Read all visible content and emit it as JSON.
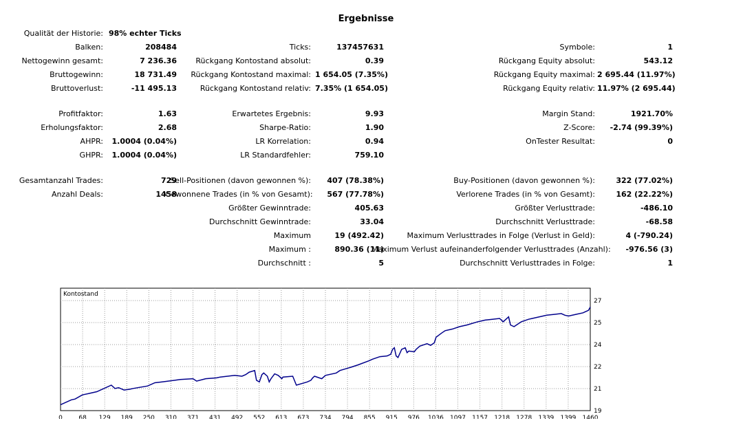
{
  "title": "Ergebnisse",
  "history": {
    "label": "Qualität der Historie:",
    "value": "98% echter Ticks"
  },
  "rows": [
    {
      "l1": "Balken:",
      "v1": "208484",
      "l2": "Ticks:",
      "v2": "137457631",
      "l3": "Symbole:",
      "v3": "1"
    },
    {
      "l1": "Nettogewinn gesamt:",
      "v1": "7 236.36",
      "l2": "Rückgang Kontostand absolut:",
      "v2": "0.39",
      "l3": "Rückgang Equity absolut:",
      "v3": "543.12"
    },
    {
      "l1": "Bruttogewinn:",
      "v1": "18 731.49",
      "l2": "Rückgang Kontostand maximal:",
      "v2": "1 654.05 (7.35%)",
      "l3": "Rückgang Equity maximal:",
      "v3": "2 695.44 (11.97%)"
    },
    {
      "l1": "Bruttoverlust:",
      "v1": "-11 495.13",
      "l2": "Rückgang Kontostand relativ:",
      "v2": "7.35% (1 654.05)",
      "l3": "Rückgang Equity relativ:",
      "v3": "11.97% (2 695.44)"
    },
    {
      "l1": "Profitfaktor:",
      "v1": "1.63",
      "l2": "Erwartetes Ergebnis:",
      "v2": "9.93",
      "l3": "Margin Stand:",
      "v3": "1921.70%"
    },
    {
      "l1": "Erholungsfaktor:",
      "v1": "2.68",
      "l2": "Sharpe-Ratio:",
      "v2": "1.90",
      "l3": "Z-Score:",
      "v3": "-2.74 (99.39%)"
    },
    {
      "l1": "AHPR:",
      "v1": "1.0004 (0.04%)",
      "l2": "LR Korrelation:",
      "v2": "0.94",
      "l3": "OnTester Resultat:",
      "v3": "0"
    },
    {
      "l1": "GHPR:",
      "v1": "1.0004 (0.04%)",
      "l2": "LR Standardfehler:",
      "v2": "759.10",
      "l3": "",
      "v3": ""
    },
    {
      "l1": "Gesamtanzahl Trades:",
      "v1": "729",
      "l2": "Sell-Positionen (davon gewonnen %):",
      "v2": "407 (78.38%)",
      "l3": "Buy-Positionen (davon gewonnen %):",
      "v3": "322 (77.02%)"
    },
    {
      "l1": "Anzahl Deals:",
      "v1": "1458",
      "l2": "Gewonnene Trades (in % von Gesamt):",
      "v2": "567 (77.78%)",
      "l3": "Verlorene Trades (in % von Gesamt):",
      "v3": "162 (22.22%)"
    },
    {
      "l1": "",
      "v1": "",
      "l2": "Größter Gewinntrade:",
      "v2": "405.63",
      "l3": "Größter Verlusttrade:",
      "v3": "-486.10"
    },
    {
      "l1": "",
      "v1": "",
      "l2": "Durchschnitt Gewinntrade:",
      "v2": "33.04",
      "l3": "Durchschnitt Verlusttrade:",
      "v3": "-68.58"
    },
    {
      "l1": "",
      "v1": "",
      "l2": "Maximum",
      "v2": "19 (492.42)",
      "l3": "Maximum Verlusttrades in Folge (Verlust in Geld):",
      "v3": "4 (-790.24)"
    },
    {
      "l1": "",
      "v1": "",
      "l2": "Maximum :",
      "v2": "890.36 (11)",
      "l3": "Maximum Verlust aufeinanderfolgender Verlusttrades (Anzahl):",
      "v3": "-976.56 (3)"
    },
    {
      "l1": "",
      "v1": "",
      "l2": "Durchschnitt :",
      "v2": "5",
      "l3": "Durchschnitt Verlusttrades in Folge:",
      "v3": "1"
    }
  ],
  "chart_data": {
    "type": "line",
    "title": "Kontostand",
    "x_ticks": [
      "0",
      "68",
      "129",
      "189",
      "250",
      "310",
      "371",
      "431",
      "492",
      "552",
      "613",
      "673",
      "734",
      "794",
      "855",
      "915",
      "976",
      "1036",
      "1097",
      "1157",
      "1218",
      "1278",
      "1339",
      "1399",
      "1460"
    ],
    "y_ticks": [
      "27161",
      "25656",
      "24152",
      "22647",
      "21142",
      "19638"
    ],
    "xlim": [
      0,
      1460
    ],
    "ylim": [
      19638,
      27161
    ],
    "grid": true,
    "line_color": "#00008b",
    "series": [
      {
        "x": [
          0,
          30,
          40,
          60,
          80,
          100,
          140,
          150,
          160,
          175,
          190,
          200,
          240,
          260,
          280,
          330,
          365,
          375,
          400,
          430,
          440,
          480,
          500,
          510,
          520,
          535,
          540,
          548,
          555,
          560,
          570,
          575,
          580,
          590,
          600,
          610,
          613,
          640,
          650,
          680,
          690,
          695,
          700,
          720,
          730,
          760,
          770,
          800,
          820,
          850,
          860,
          880,
          900,
          910,
          915,
          920,
          925,
          930,
          940,
          950,
          955,
          960,
          975,
          980,
          990,
          1010,
          1020,
          1030,
          1035,
          1050,
          1060,
          1080,
          1100,
          1120,
          1150,
          1160,
          1170,
          1190,
          1210,
          1220,
          1235,
          1240,
          1250,
          1270,
          1290,
          1300,
          1340,
          1360,
          1380,
          1390,
          1400,
          1420,
          1440,
          1445,
          1455,
          1460
        ],
        "y": [
          20000,
          20300,
          20350,
          20600,
          20700,
          20800,
          21200,
          21000,
          21050,
          20900,
          20950,
          21000,
          21150,
          21350,
          21400,
          21550,
          21600,
          21450,
          21600,
          21650,
          21700,
          21800,
          21750,
          21850,
          22000,
          22100,
          21500,
          21400,
          21850,
          21950,
          21750,
          21400,
          21600,
          21900,
          21800,
          21600,
          21700,
          21750,
          21200,
          21400,
          21500,
          21650,
          21750,
          21600,
          21800,
          21950,
          22100,
          22300,
          22450,
          22700,
          22800,
          22950,
          23000,
          23100,
          23400,
          23500,
          23000,
          22900,
          23400,
          23500,
          23200,
          23300,
          23250,
          23400,
          23600,
          23750,
          23650,
          23800,
          24150,
          24400,
          24550,
          24650,
          24800,
          24900,
          25100,
          25150,
          25200,
          25250,
          25300,
          25100,
          25400,
          24900,
          24800,
          25100,
          25250,
          25300,
          25500,
          25550,
          25600,
          25500,
          25450,
          25550,
          25650,
          25700,
          25800,
          26000
        ]
      }
    ]
  }
}
